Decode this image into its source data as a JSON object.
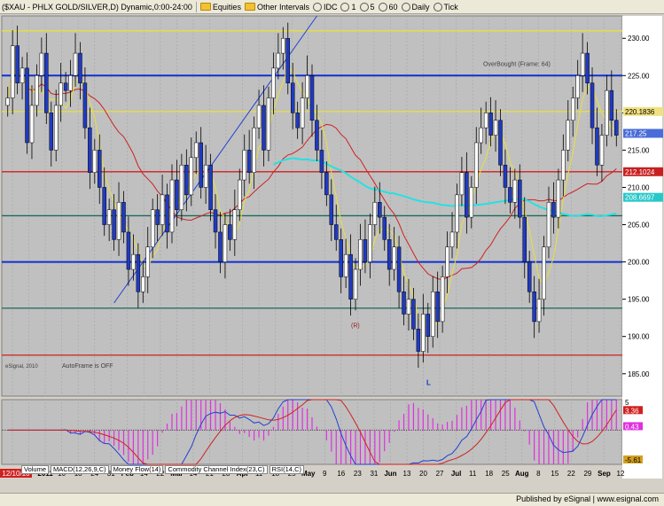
{
  "toolbar": {
    "symbol": "($XAU - PHLX GOLD/SILVER,D) Dynamic,0:00-24:00",
    "equities": "Equities",
    "other_intervals": "Other Intervals",
    "idc": "IDC",
    "i1": "1",
    "i5": "5",
    "i60": "60",
    "daily": "Daily",
    "tick": "Tick"
  },
  "tabs": [
    "Volume",
    "MACD(12,26,9,C)",
    "Money Flow(14)",
    "Commodity Channel Index(23,C)",
    "RSI(14,C)"
  ],
  "status_bar": "Published by eSignal | www.esignal.com",
  "chart_data": {
    "type": "candlestick",
    "price_axis": {
      "min": 182,
      "max": 233,
      "ticks": [
        185.0,
        190.0,
        195.0,
        200.0,
        205.0,
        210.0,
        215.0,
        220.0,
        225.0,
        230.0
      ]
    },
    "price_badges": [
      {
        "label": "220.1836",
        "value": 220.1836,
        "color": "#f0e080"
      },
      {
        "label": "217.25",
        "value": 217.25,
        "color": "#4a6cd8"
      },
      {
        "label": "212.1024",
        "value": 212.1024,
        "color": "#c82020"
      },
      {
        "label": "208.6697",
        "value": 208.6697,
        "color": "#28c8c8"
      }
    ],
    "date_axis": {
      "start_badge": "12/10/10",
      "labels": [
        "20",
        "27",
        "2011",
        "10",
        "18",
        "24",
        "31",
        "Feb",
        "14",
        "22",
        "Mar",
        "14",
        "21",
        "28",
        "Apr",
        "11",
        "18",
        "25",
        "May",
        "9",
        "16",
        "23",
        "31",
        "Jun",
        "13",
        "20",
        "27",
        "Jul",
        "11",
        "18",
        "25",
        "Aug",
        "8",
        "15",
        "22",
        "29",
        "Sep",
        "12"
      ]
    },
    "horizontal_lines": [
      {
        "value": 231,
        "color": "#e8e040"
      },
      {
        "value": 225,
        "color": "#1030d0"
      },
      {
        "value": 220.18,
        "color": "#e8e040"
      },
      {
        "value": 212.1,
        "color": "#d02020"
      },
      {
        "value": 206.2,
        "color": "#1a6a5a"
      },
      {
        "value": 200,
        "color": "#1030d0"
      },
      {
        "value": 193.8,
        "color": "#1a6a5a"
      },
      {
        "value": 187.5,
        "color": "#d02020"
      }
    ],
    "annotations": [
      "OverBought (Frame: 64)",
      "AutoFrame is OFF",
      "eSignal, 2010",
      "(R)",
      "L"
    ],
    "candles": [
      222,
      229,
      224,
      226,
      216,
      221,
      225,
      228,
      220,
      215,
      221,
      224,
      223,
      225,
      228,
      224,
      218,
      212,
      215,
      210,
      205,
      207,
      203,
      208,
      204,
      199,
      201,
      196,
      198,
      202,
      207,
      205,
      209,
      204,
      211,
      207,
      213,
      209,
      214,
      216,
      210,
      213,
      207,
      204,
      200,
      205,
      203,
      207,
      211,
      215,
      212,
      218,
      221,
      215,
      222,
      226,
      228,
      230,
      224,
      220,
      218,
      222,
      225,
      219,
      215,
      212,
      209,
      205,
      203,
      198,
      201,
      195,
      199,
      203,
      200,
      205,
      208,
      206,
      203,
      199,
      202,
      196,
      193,
      195,
      191,
      188,
      193,
      190,
      196,
      192,
      198,
      202,
      204,
      209,
      212,
      206,
      210,
      216,
      218,
      220,
      217,
      219,
      213,
      210,
      208,
      211,
      206,
      200,
      196,
      192,
      195,
      202,
      208,
      206,
      211,
      215,
      219,
      222,
      225,
      228,
      224,
      218,
      213,
      217,
      223,
      219,
      217
    ],
    "macd": {
      "ylim": [
        -5.61,
        5.0
      ],
      "badges": [
        "5",
        "3.36",
        "0.43",
        "-5.61"
      ]
    },
    "colors": {
      "up": "#ffffff",
      "down": "#203ac0",
      "bg": "#c0c0c0",
      "ma_red": "#d02020",
      "ma_yellow": "#e8e040",
      "ma_cyan": "#28e0e0"
    }
  }
}
